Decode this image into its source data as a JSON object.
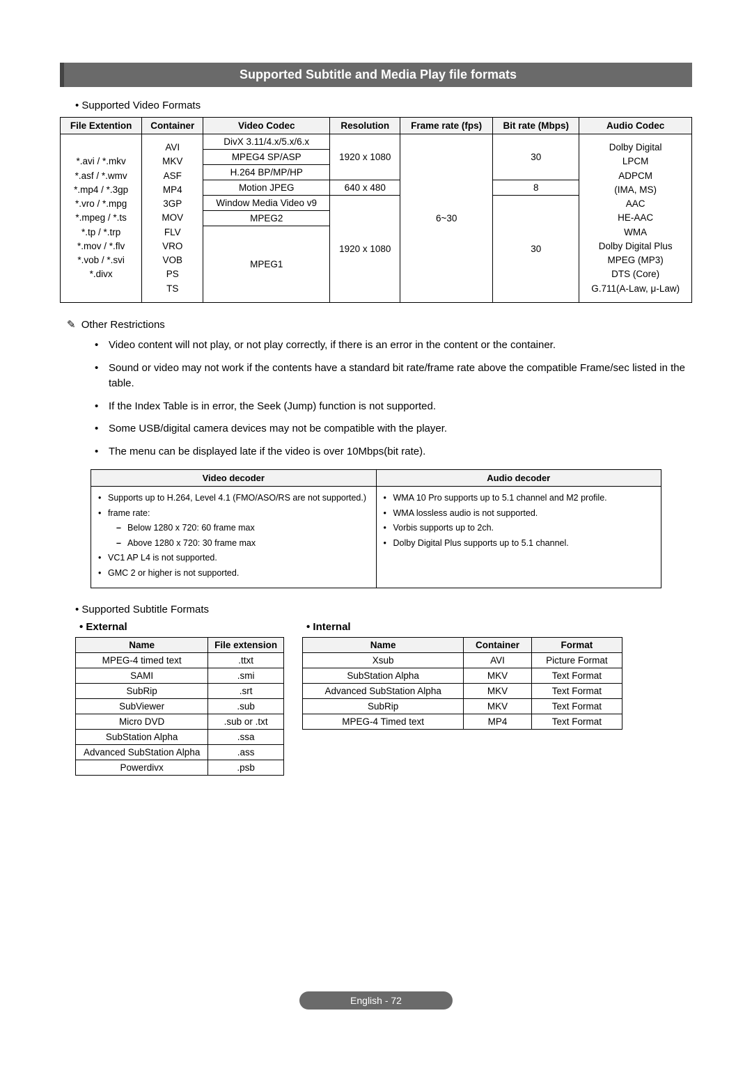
{
  "banner_title": "Supported Subtitle and Media Play file formats",
  "supported_video_formats_label": "Supported Video Formats",
  "video_table": {
    "headers": [
      "File Extention",
      "Container",
      "Video Codec",
      "Resolution",
      "Frame rate (fps)",
      "Bit rate (Mbps)",
      "Audio Codec"
    ],
    "file_ext": "*.avi / *.mkv\n*.asf / *.wmv\n*.mp4 / *.3gp\n*.vro / *.mpg\n*.mpeg / *.ts\n*.tp / *.trp\n*.mov / *.flv\n*.vob / *.svi\n*.divx",
    "container": "AVI\nMKV\nASF\nMP4\n3GP\nMOV\nFLV\nVRO\nVOB\nPS\nTS",
    "codec_rows": [
      {
        "codec": "DivX 3.11/4.x/5.x/6.x",
        "res": "1920 x 1080",
        "bit": "30"
      },
      {
        "codec": "MPEG4 SP/ASP"
      },
      {
        "codec": "H.264 BP/MP/HP"
      },
      {
        "codec": "Motion JPEG",
        "res": "640 x 480",
        "bit": "8"
      },
      {
        "codec": "Window Media Video v9",
        "res": "1920 x 1080",
        "bit": "30"
      },
      {
        "codec": "MPEG2"
      },
      {
        "codec": "MPEG1"
      }
    ],
    "frame_rate": "6~30",
    "audio_codec": "Dolby Digital\nLPCM\nADPCM\n(IMA, MS)\nAAC\nHE-AAC\nWMA\nDolby Digital Plus\nMPEG (MP3)\nDTS (Core)\nG.711(A-Law, μ-Law)"
  },
  "other_restrictions_label": "Other Restrictions",
  "restrictions": [
    "Video content will not play, or not play correctly, if there is an error in the content or the container.",
    "Sound or video may not work if the contents have a standard bit rate/frame rate above the compatible Frame/sec listed in the table.",
    "If the Index Table is in error, the Seek (Jump) function is not supported.",
    "Some USB/digital camera devices may not be compatible with the player.",
    "The menu can be displayed late if the video is over 10Mbps(bit rate)."
  ],
  "decoder_table": {
    "headers": [
      "Video decoder",
      "Audio decoder"
    ],
    "video": {
      "items": [
        "Supports up to H.264, Level 4.1 (FMO/ASO/RS are not supported.)",
        "frame rate:",
        "VC1 AP L4 is not supported.",
        "GMC 2 or higher is not supported."
      ],
      "frame_sub": [
        "Below 1280 x 720: 60 frame max",
        "Above 1280 x 720: 30 frame max"
      ]
    },
    "audio": [
      "WMA 10 Pro supports up to 5.1 channel and M2 profile.",
      "WMA lossless audio is not supported.",
      "Vorbis supports up to 2ch.",
      "Dolby Digital Plus supports up to 5.1 channel."
    ]
  },
  "supported_subtitle_formats_label": "Supported Subtitle Formats",
  "external_label": "External",
  "internal_label": "Internal",
  "external_table": {
    "headers": [
      "Name",
      "File extension"
    ],
    "rows": [
      [
        "MPEG-4 timed text",
        ".ttxt"
      ],
      [
        "SAMI",
        ".smi"
      ],
      [
        "SubRip",
        ".srt"
      ],
      [
        "SubViewer",
        ".sub"
      ],
      [
        "Micro DVD",
        ".sub or .txt"
      ],
      [
        "SubStation Alpha",
        ".ssa"
      ],
      [
        "Advanced SubStation Alpha",
        ".ass"
      ],
      [
        "Powerdivx",
        ".psb"
      ]
    ]
  },
  "internal_table": {
    "headers": [
      "Name",
      "Container",
      "Format"
    ],
    "rows": [
      [
        "Xsub",
        "AVI",
        "Picture Format"
      ],
      [
        "SubStation Alpha",
        "MKV",
        "Text Format"
      ],
      [
        "Advanced SubStation Alpha",
        "MKV",
        "Text Format"
      ],
      [
        "SubRip",
        "MKV",
        "Text Format"
      ],
      [
        "MPEG-4 Timed text",
        "MP4",
        "Text Format"
      ]
    ]
  },
  "footer": "English - 72"
}
